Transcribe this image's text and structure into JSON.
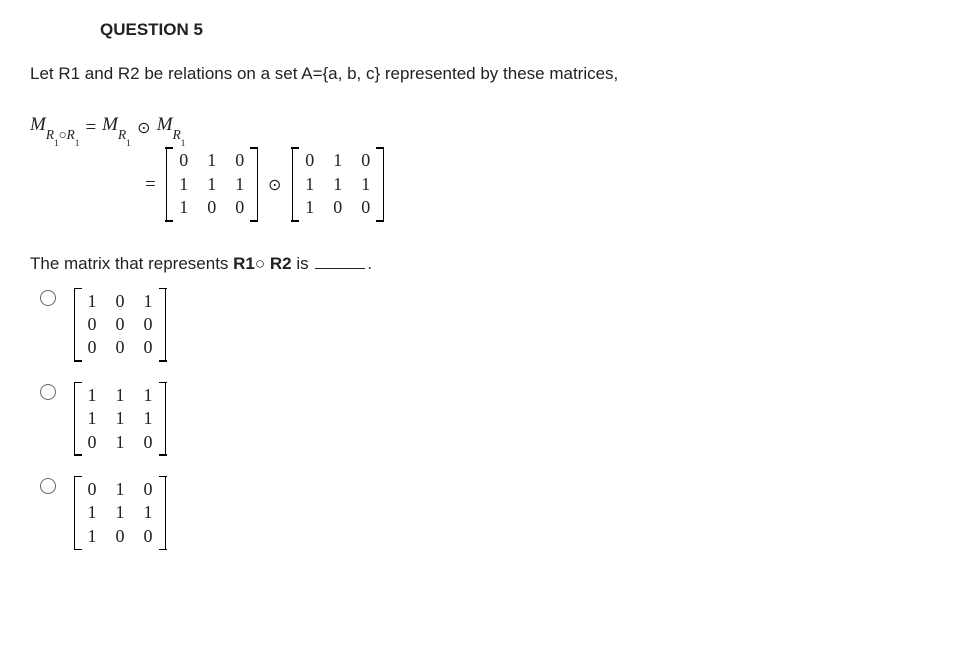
{
  "title": "QUESTION 5",
  "intro": "Let R1 and R2 be relations on a set A={a, b, c} represented by these matrices,",
  "eq": {
    "lhs_M": "M",
    "lhs_sub1": "R",
    "lhs_sub1n": "1",
    "lhs_circ": "○",
    "lhs_sub2": "R",
    "lhs_sub2n": "1",
    "eqsign": "=",
    "rhs1_M": "M",
    "rhs1_sub": "R",
    "rhs1_subn": "1",
    "odot": "⊙",
    "rhs2_M": "M",
    "rhs2_sub": "R",
    "rhs2_subn": "1",
    "line2_eq": "=",
    "m1": [
      [
        "0",
        "1",
        "0"
      ],
      [
        "1",
        "1",
        "1"
      ],
      [
        "1",
        "0",
        "0"
      ]
    ],
    "m2": [
      [
        "0",
        "1",
        "0"
      ],
      [
        "1",
        "1",
        "1"
      ],
      [
        "1",
        "0",
        "0"
      ]
    ]
  },
  "prompt_pre": "The matrix that represents ",
  "prompt_bold": "R1○ R2",
  "prompt_mid": "  is ",
  "prompt_post": ".",
  "options": [
    {
      "rows": [
        [
          "1",
          "0",
          "1"
        ],
        [
          "0",
          "0",
          "0"
        ],
        [
          "0",
          "0",
          "0"
        ]
      ]
    },
    {
      "rows": [
        [
          "1",
          "1",
          "1"
        ],
        [
          "1",
          "1",
          "1"
        ],
        [
          "0",
          "1",
          "0"
        ]
      ]
    },
    {
      "rows": [
        [
          "0",
          "1",
          "0"
        ],
        [
          "1",
          "1",
          "1"
        ],
        [
          "1",
          "0",
          "0"
        ]
      ]
    }
  ],
  "colors": {
    "text": "#222222",
    "bg": "#ffffff",
    "radio_border": "#666666"
  },
  "fonts": {
    "body_family": "Arial, Helvetica, sans-serif",
    "math_family": "Times New Roman, serif",
    "body_size_pt": 13,
    "title_size_pt": 13,
    "title_weight": "bold"
  }
}
